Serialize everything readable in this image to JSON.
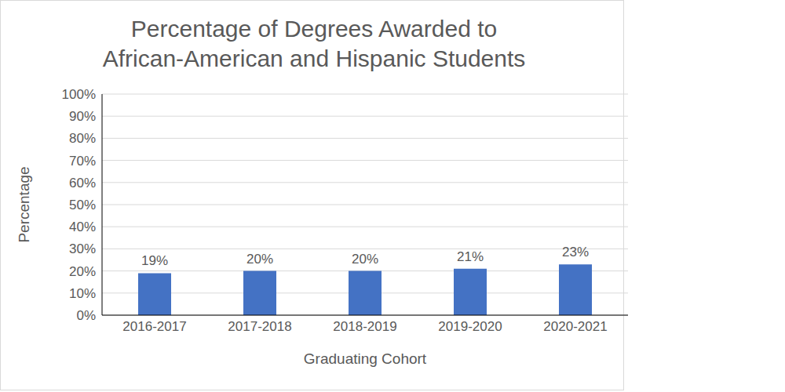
{
  "chart_data": {
    "type": "bar",
    "title": "Percentage of Degrees Awarded to\nAfrican-American and Hispanic Students",
    "x_label": "Graduating Cohort",
    "y_label": "Percentage",
    "categories": [
      "2016-2017",
      "2017-2018",
      "2018-2019",
      "2019-2020",
      "2020-2021"
    ],
    "values": [
      19,
      20,
      20,
      21,
      23
    ],
    "value_labels": [
      "19%",
      "20%",
      "20%",
      "21%",
      "23%"
    ],
    "data_labels": true,
    "color": "#4472c4",
    "ylim": [
      0,
      100
    ],
    "yticks": [
      {
        "value": 0,
        "label": "0%"
      },
      {
        "value": 10,
        "label": "10%"
      },
      {
        "value": 20,
        "label": "20%"
      },
      {
        "value": 30,
        "label": "30%"
      },
      {
        "value": 40,
        "label": "40%"
      },
      {
        "value": 50,
        "label": "50%"
      },
      {
        "value": 60,
        "label": "60%"
      },
      {
        "value": 70,
        "label": "70%"
      },
      {
        "value": 80,
        "label": "80%"
      },
      {
        "value": 90,
        "label": "90%"
      },
      {
        "value": 100,
        "label": "100%"
      }
    ],
    "grid": true
  }
}
